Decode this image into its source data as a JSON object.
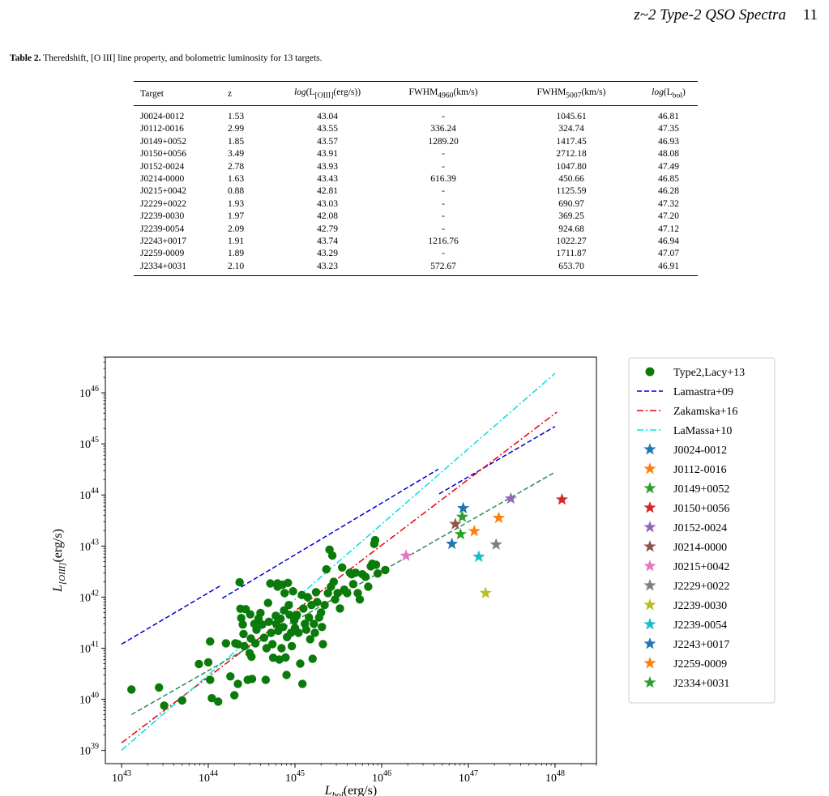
{
  "header": {
    "title": "z~2 Type-2 QSO Spectra",
    "page_number": "11"
  },
  "table": {
    "caption_label": "Table 2.",
    "caption_text": " Theredshift, [O III] line property, and bolometric luminosity for 13 targets.",
    "headers": {
      "target": "Target",
      "z": "z",
      "loiii_func": "log",
      "loiii_arg_pre": "(L",
      "loiii_sub": "[OIII]",
      "loiii_arg_post": "(erg/s))",
      "fwhm4960_main": "FWHM",
      "fwhm4960_sub": "4960",
      "fwhm4960_unit": "(km/s)",
      "fwhm5007_main": "FWHM",
      "fwhm5007_sub": "5007",
      "fwhm5007_unit": "(km/s)",
      "lbol_func": "log",
      "lbol_arg_pre": "(L",
      "lbol_sub": "bol",
      "lbol_arg_post": ")"
    },
    "rows": [
      {
        "target": "J0024-0012",
        "z": "1.53",
        "loiii": "43.04",
        "fwhm4960": "-",
        "fwhm5007": "1045.61",
        "lbol": "46.81"
      },
      {
        "target": "J0112-0016",
        "z": "2.99",
        "loiii": "43.55",
        "fwhm4960": "336.24",
        "fwhm5007": "324.74",
        "lbol": "47.35"
      },
      {
        "target": "J0149+0052",
        "z": "1.85",
        "loiii": "43.57",
        "fwhm4960": "1289.20",
        "fwhm5007": "1417.45",
        "lbol": "46.93"
      },
      {
        "target": "J0150+0056",
        "z": "3.49",
        "loiii": "43.91",
        "fwhm4960": "-",
        "fwhm5007": "2712.18",
        "lbol": "48.08"
      },
      {
        "target": "J0152-0024",
        "z": "2.78",
        "loiii": "43.93",
        "fwhm4960": "-",
        "fwhm5007": "1047.80",
        "lbol": "47.49"
      },
      {
        "target": "J0214-0000",
        "z": "1.63",
        "loiii": "43.43",
        "fwhm4960": "616.39",
        "fwhm5007": "450.66",
        "lbol": "46.85"
      },
      {
        "target": "J0215+0042",
        "z": "0.88",
        "loiii": "42.81",
        "fwhm4960": "-",
        "fwhm5007": "1125.59",
        "lbol": "46.28"
      },
      {
        "target": "J2229+0022",
        "z": "1.93",
        "loiii": "43.03",
        "fwhm4960": "-",
        "fwhm5007": "690.97",
        "lbol": "47.32"
      },
      {
        "target": "J2239-0030",
        "z": "1.97",
        "loiii": "42.08",
        "fwhm4960": "-",
        "fwhm5007": "369.25",
        "lbol": "47.20"
      },
      {
        "target": "J2239-0054",
        "z": "2.09",
        "loiii": "42.79",
        "fwhm4960": "-",
        "fwhm5007": "924.68",
        "lbol": "47.12"
      },
      {
        "target": "J2243+0017",
        "z": "1.91",
        "loiii": "43.74",
        "fwhm4960": "1216.76",
        "fwhm5007": "1022.27",
        "lbol": "46.94"
      },
      {
        "target": "J2259-0009",
        "z": "1.89",
        "loiii": "43.29",
        "fwhm4960": "-",
        "fwhm5007": "1711.87",
        "lbol": "47.07"
      },
      {
        "target": "J2334+0031",
        "z": "2.10",
        "loiii": "43.23",
        "fwhm4960": "572.67",
        "fwhm5007": "653.70",
        "lbol": "46.91"
      }
    ]
  },
  "chart_data": {
    "type": "scatter",
    "x_scale": "log",
    "y_scale": "log",
    "xlim": [
      6.5e+42,
      3e+48
    ],
    "ylim": [
      5.5e+38,
      5e+46
    ],
    "xlabel_main": "L",
    "xlabel_sub": "bol",
    "xlabel_unit": "(erg/s)",
    "ylabel_main": "L",
    "ylabel_sub": "[OIII]",
    "ylabel_unit": "(erg/s)",
    "x_ticks": [
      {
        "base": "10",
        "exp": "43",
        "value": 1e+43
      },
      {
        "base": "10",
        "exp": "44",
        "value": 1e+44
      },
      {
        "base": "10",
        "exp": "45",
        "value": 1e+45
      },
      {
        "base": "10",
        "exp": "46",
        "value": 1e+46
      },
      {
        "base": "10",
        "exp": "47",
        "value": 1e+47
      },
      {
        "base": "10",
        "exp": "48",
        "value": 1e+48
      }
    ],
    "y_ticks": [
      {
        "base": "10",
        "exp": "39",
        "value": 1e+39
      },
      {
        "base": "10",
        "exp": "40",
        "value": 1e+40
      },
      {
        "base": "10",
        "exp": "41",
        "value": 1e+41
      },
      {
        "base": "10",
        "exp": "42",
        "value": 1e+42
      },
      {
        "base": "10",
        "exp": "43",
        "value": 1e+43
      },
      {
        "base": "10",
        "exp": "44",
        "value": 1e+44
      },
      {
        "base": "10",
        "exp": "45",
        "value": 1e+45
      },
      {
        "base": "10",
        "exp": "46",
        "value": 1e+46
      }
    ],
    "legend_position": "outside-right",
    "type2_sample": {
      "name": "Type2,Lacy+13",
      "color": "#0a7a0a",
      "points": [
        [
          1.3e+43,
          1.55e+40
        ],
        [
          2.7e+43,
          1.7e+40
        ],
        [
          3.1e+43,
          7.5e+39
        ],
        [
          5e+43,
          9.5e+39
        ],
        [
          7.8e+43,
          4.9e+40
        ],
        [
          1e+44,
          5.3e+40
        ],
        [
          1.05e+44,
          1.35e+41
        ],
        [
          1.05e+44,
          2.4e+40
        ],
        [
          1.1e+44,
          1.05e+40
        ],
        [
          1.3e+44,
          9e+39
        ],
        [
          1.6e+44,
          1.25e+41
        ],
        [
          1.8e+44,
          2.8e+40
        ],
        [
          2e+44,
          1.2e+40
        ],
        [
          2.05e+44,
          1.25e+41
        ],
        [
          2.2e+44,
          2e+40
        ],
        [
          2.2e+44,
          1.2e+41
        ],
        [
          2.3e+44,
          1.95e+42
        ],
        [
          2.35e+44,
          5.9e+41
        ],
        [
          2.4e+44,
          3.9e+41
        ],
        [
          2.5e+44,
          2.9e+41
        ],
        [
          2.55e+44,
          1.9e+41
        ],
        [
          2.6e+44,
          1.1e+41
        ],
        [
          2.7e+44,
          5.8e+41
        ],
        [
          2.85e+44,
          2.4e+40
        ],
        [
          3e+44,
          8e+40
        ],
        [
          3.05e+44,
          4.6e+41
        ],
        [
          3.1e+44,
          1.55e+41
        ],
        [
          3.15e+44,
          6.8e+40
        ],
        [
          3.2e+44,
          2.5e+40
        ],
        [
          3.4e+44,
          3e+41
        ],
        [
          3.5e+44,
          1.25e+41
        ],
        [
          3.6e+44,
          2.3e+41
        ],
        [
          3.8e+44,
          3.8e+41
        ],
        [
          4e+44,
          4.9e+41
        ],
        [
          4.2e+44,
          2.9e+41
        ],
        [
          4.4e+44,
          1.6e+41
        ],
        [
          4.6e+44,
          2.4e+40
        ],
        [
          4.7e+44,
          1e+41
        ],
        [
          4.9e+44,
          7.7e+41
        ],
        [
          5e+44,
          3.3e+41
        ],
        [
          5.2e+44,
          1.85e+42
        ],
        [
          5.3e+44,
          2e+41
        ],
        [
          5.5e+44,
          1.2e+41
        ],
        [
          5.6e+44,
          6.5e+40
        ],
        [
          6e+44,
          4.3e+41
        ],
        [
          6.1e+44,
          3e+41
        ],
        [
          6.3e+44,
          1.85e+42
        ],
        [
          6.3e+44,
          1.6e+42
        ],
        [
          6.4e+44,
          2.2e+41
        ],
        [
          6.6e+44,
          6e+40
        ],
        [
          6.8e+44,
          3.8e+41
        ],
        [
          7e+44,
          1e+41
        ],
        [
          7.2e+44,
          1.75e+42
        ],
        [
          7.3e+44,
          2.6e+41
        ],
        [
          7.5e+44,
          5.5e+41
        ],
        [
          7.6e+44,
          1.2e+42
        ],
        [
          7.8e+44,
          6.6e+40
        ],
        [
          8e+44,
          3e+40
        ],
        [
          8.1e+44,
          1.65e+41
        ],
        [
          8.3e+44,
          1.9e+42
        ],
        [
          8.5e+44,
          7e+41
        ],
        [
          8.7e+44,
          4.5e+41
        ],
        [
          9e+44,
          2e+41
        ],
        [
          9.2e+44,
          1.1e+41
        ],
        [
          9.5e+44,
          1.3e+42
        ],
        [
          9.8e+44,
          3.5e+41
        ],
        [
          1e+45,
          2.5e+41
        ],
        [
          1.05e+45,
          4.5e+41
        ],
        [
          1.1e+45,
          2e+41
        ],
        [
          1.15e+45,
          5e+40
        ],
        [
          1.2e+45,
          1.1e+42
        ],
        [
          1.22e+45,
          2e+40
        ],
        [
          1.25e+45,
          6e+41
        ],
        [
          1.3e+45,
          3e+41
        ],
        [
          1.35e+45,
          2.3e+41
        ],
        [
          1.4e+45,
          1e+42
        ],
        [
          1.45e+45,
          4e+41
        ],
        [
          1.5e+45,
          1.5e+41
        ],
        [
          1.55e+45,
          7e+41
        ],
        [
          1.6e+45,
          6.2e+40
        ],
        [
          1.65e+45,
          3e+41
        ],
        [
          1.7e+45,
          2e+41
        ],
        [
          1.75e+45,
          1.25e+42
        ],
        [
          1.8e+45,
          8e+41
        ],
        [
          1.9e+45,
          4e+41
        ],
        [
          2e+45,
          5e+41
        ],
        [
          2.05e+45,
          2.6e+41
        ],
        [
          2.1e+45,
          1.2e+41
        ],
        [
          2.2e+45,
          7e+41
        ],
        [
          2.3e+45,
          3.5e+42
        ],
        [
          2.4e+45,
          1.2e+42
        ],
        [
          2.5e+45,
          8.5e+42
        ],
        [
          2.6e+45,
          1.6e+42
        ],
        [
          2.7e+45,
          6.5e+42
        ],
        [
          2.8e+45,
          2e+42
        ],
        [
          2.9e+45,
          9e+41
        ],
        [
          3.1e+45,
          1.2e+42
        ],
        [
          3.3e+45,
          6e+41
        ],
        [
          3.5e+45,
          3.8e+42
        ],
        [
          3.7e+45,
          1.4e+42
        ],
        [
          4e+45,
          1.2e+42
        ],
        [
          4.3e+45,
          3e+42
        ],
        [
          4.5e+45,
          2.8e+42
        ],
        [
          4.7e+45,
          1.8e+42
        ],
        [
          5e+45,
          3e+42
        ],
        [
          5.3e+45,
          1.2e+42
        ],
        [
          5.6e+45,
          9e+41
        ],
        [
          6e+45,
          2.8e+42
        ],
        [
          6.5e+45,
          2.5e+42
        ],
        [
          7e+45,
          1.6e+42
        ],
        [
          7.5e+45,
          4e+42
        ],
        [
          7.8e+45,
          4.5e+42
        ],
        [
          8.2e+45,
          1.1e+43
        ],
        [
          8.4e+45,
          1.3e+43
        ],
        [
          8.6e+45,
          4.3e+42
        ],
        [
          9e+45,
          2.9e+42
        ],
        [
          1.1e+46,
          3.4e+42
        ]
      ]
    },
    "relations": [
      {
        "name": "Lamastra+09",
        "color": "#0000cc",
        "style": "dashed",
        "segments": [
          [
            [
              1e+43,
              1.2e+41
            ],
            [
              1.4e+44,
              1.7e+42
            ]
          ],
          [
            [
              1.45e+44,
              9.5e+41
            ],
            [
              4.5e+46,
              3.2e+44
            ]
          ],
          [
            [
              4.6e+46,
              1.05e+44
            ],
            [
              1e+48,
              2.2e+45
            ]
          ]
        ]
      },
      {
        "name": "Zakamska+16",
        "color": "#e8000b",
        "style": "dashdot",
        "segments": [
          [
            [
              1e+43,
              1.4e+39
            ],
            [
              1.05e+48,
              4.2e+45
            ]
          ]
        ]
      },
      {
        "name": "LaMassa+10",
        "color": "#00e0e0",
        "style": "dashdot",
        "segments": [
          [
            [
              1e+43,
              1e+39
            ],
            [
              1e+48,
              2.4e+46
            ]
          ]
        ]
      },
      {
        "name": "",
        "color": "#2e8b57",
        "style": "dashed",
        "segments": [
          [
            [
              1.3e+43,
              5e+39
            ],
            [
              1e+48,
              2.8e+44
            ]
          ]
        ]
      }
    ],
    "targets": [
      {
        "name": "J0024-0012",
        "color": "#1f77b4",
        "x": 6.46e+46,
        "y": 1.1e+43
      },
      {
        "name": "J0112-0016",
        "color": "#ff7f0e",
        "x": 2.24e+47,
        "y": 3.55e+43
      },
      {
        "name": "J0149+0052",
        "color": "#2ca02c",
        "x": 8.51e+46,
        "y": 3.72e+43
      },
      {
        "name": "J0150+0056",
        "color": "#d62728",
        "x": 1.2e+48,
        "y": 8.13e+43
      },
      {
        "name": "J0152-0024",
        "color": "#9467bd",
        "x": 3.09e+47,
        "y": 8.51e+43
      },
      {
        "name": "J0214-0000",
        "color": "#8c564b",
        "x": 7.08e+46,
        "y": 2.69e+43
      },
      {
        "name": "J0215+0042",
        "color": "#e377c2",
        "x": 1.91e+46,
        "y": 6.46e+42
      },
      {
        "name": "J2229+0022",
        "color": "#7f7f7f",
        "x": 2.09e+47,
        "y": 1.07e+43
      },
      {
        "name": "J2239-0030",
        "color": "#bcbd22",
        "x": 1.58e+47,
        "y": 1.2e+42
      },
      {
        "name": "J2239-0054",
        "color": "#17becf",
        "x": 1.32e+47,
        "y": 6.17e+42
      },
      {
        "name": "J2243+0017",
        "color": "#1f77b4",
        "x": 8.71e+46,
        "y": 5.5e+43
      },
      {
        "name": "J2259-0009",
        "color": "#ff7f0e",
        "x": 1.17e+47,
        "y": 1.95e+43
      },
      {
        "name": "J2334+0031",
        "color": "#2ca02c",
        "x": 8.13e+46,
        "y": 1.7e+43
      }
    ]
  }
}
